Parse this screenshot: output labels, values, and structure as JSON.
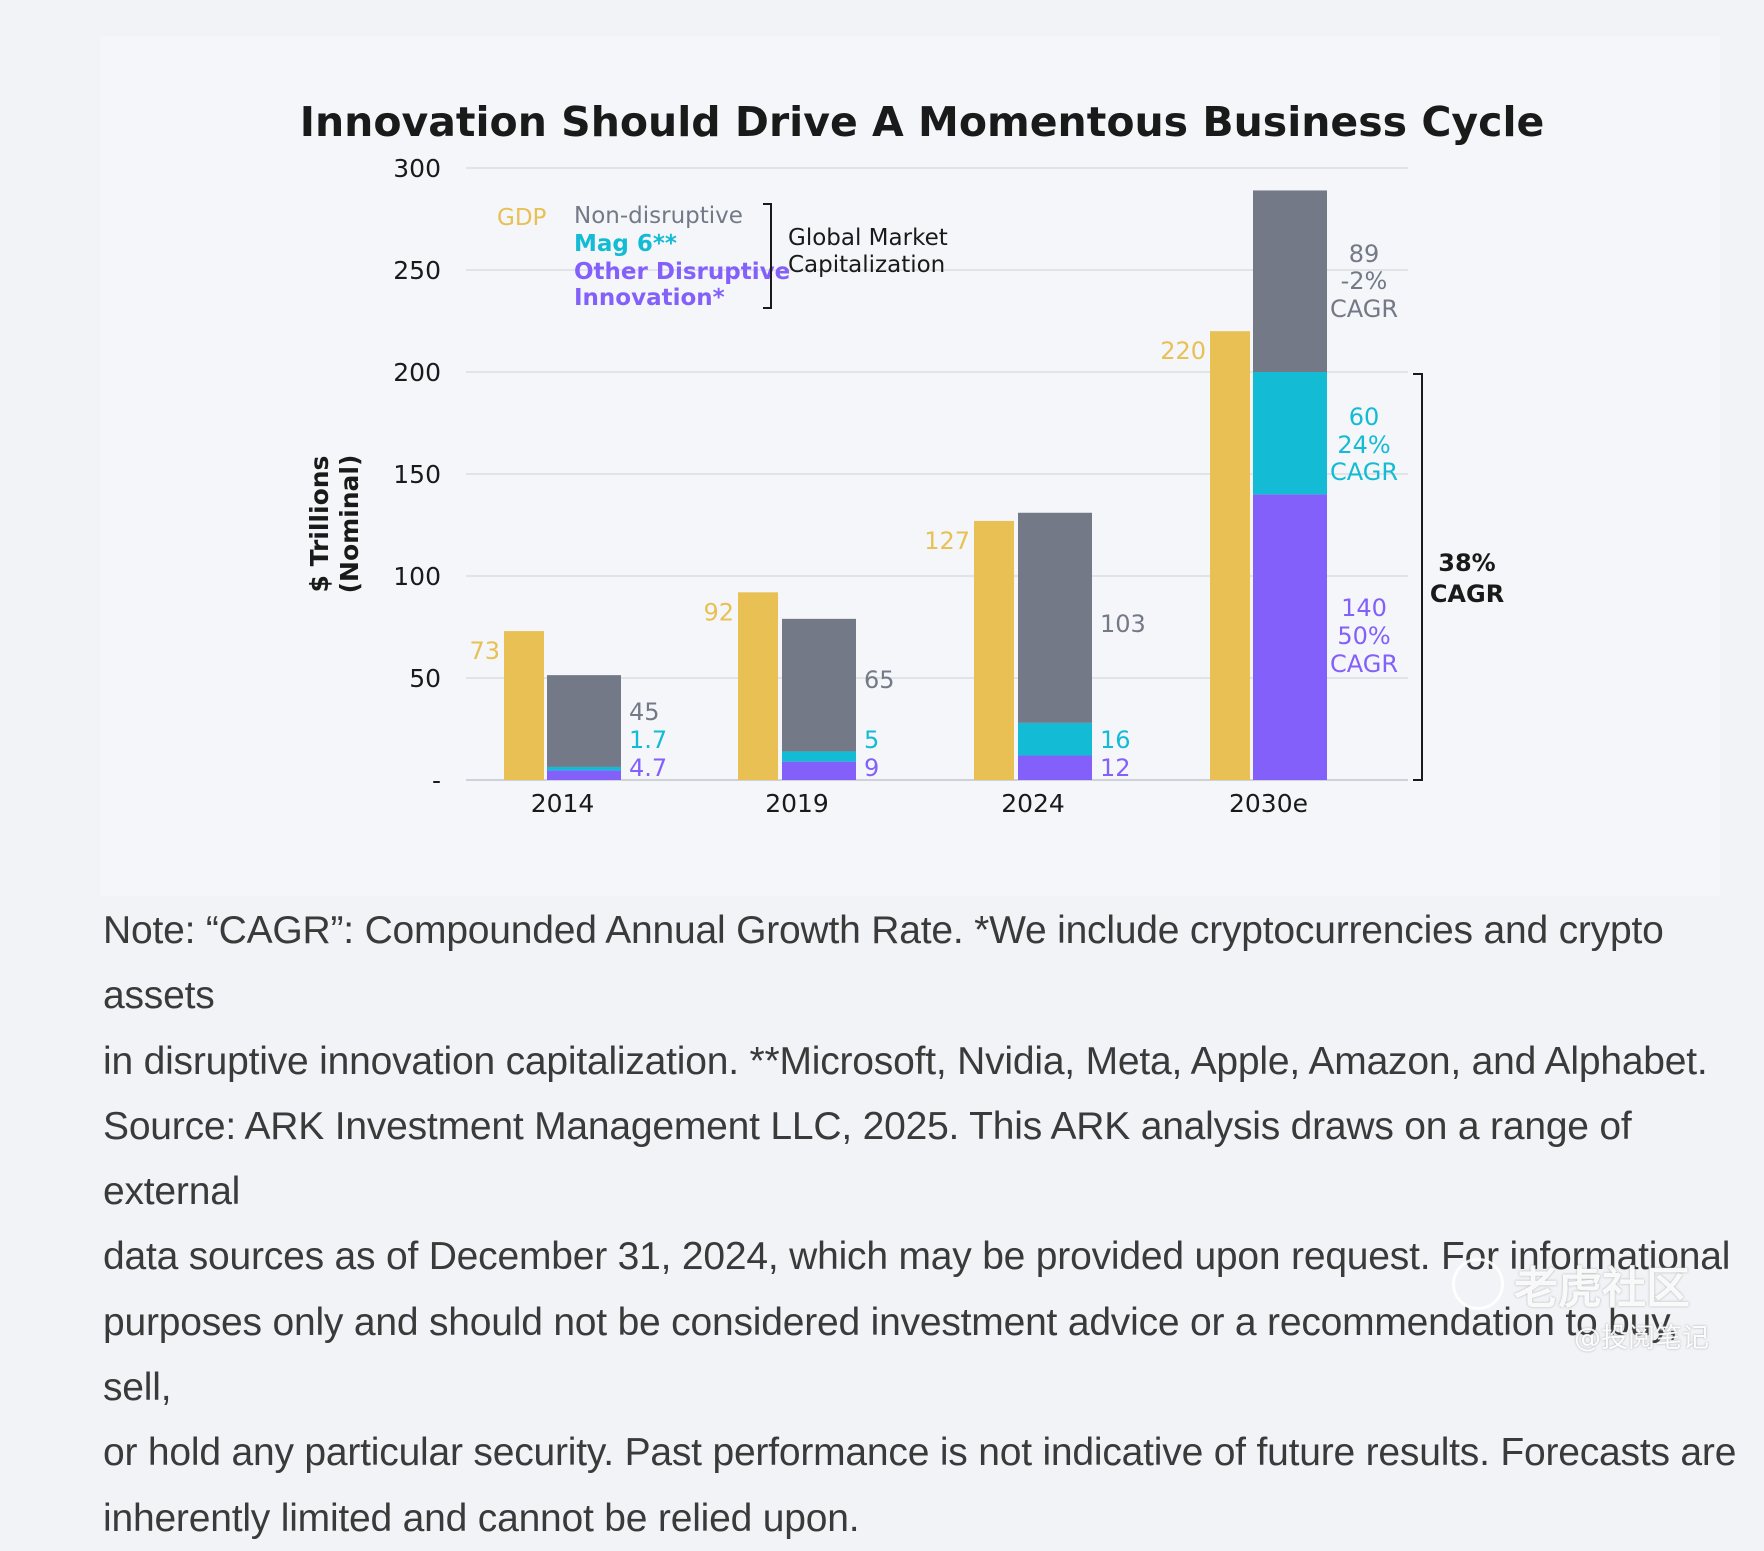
{
  "chart_data": {
    "type": "bar",
    "title": "Innovation Should Drive A Momentous Business Cycle",
    "ylabel_line1": "$ Trillions",
    "ylabel_line2": "(Nominal)",
    "ylim": [
      0,
      300
    ],
    "yticks": [
      "300",
      "250",
      "200",
      "150",
      "100",
      "50",
      "-"
    ],
    "ytick_values": [
      300,
      250,
      200,
      150,
      100,
      50,
      0
    ],
    "grid": true,
    "categories": [
      "2014",
      "2019",
      "2024",
      "2030e"
    ],
    "gdp": {
      "name": "GDP",
      "values": [
        73,
        92,
        127,
        220
      ],
      "labels": [
        "73",
        "92",
        "127",
        "220"
      ]
    },
    "market_cap_series": [
      {
        "name": "Other Disruptive Innovation*",
        "values": [
          4.7,
          9,
          12,
          140
        ]
      },
      {
        "name": "Mag 6**",
        "values": [
          1.7,
          5,
          16,
          60
        ]
      },
      {
        "name": "Non-disruptive",
        "values": [
          45,
          65,
          103,
          89
        ]
      }
    ],
    "value_labels": [
      {
        "non": "45",
        "mag": "1.7",
        "other": "4.7"
      },
      {
        "non": "65",
        "mag": "5",
        "other": "9"
      },
      {
        "non": "103",
        "mag": "16",
        "other": "12"
      },
      {
        "non_lines": [
          "89",
          "-2%",
          "CAGR"
        ],
        "mag_lines": [
          "60",
          "24%",
          "CAGR"
        ],
        "other_lines": [
          "140",
          "50%",
          "CAGR"
        ]
      }
    ],
    "legend": {
      "gdp": "GDP",
      "non": "Non-disruptive",
      "mag": "Mag 6**",
      "other_line1": "Other Disruptive",
      "other_line2": "Innovation*",
      "group_line1": "Global Market",
      "group_line2": "Capitalization",
      "placement": "top-left"
    },
    "bracket_label_line1": "38%",
    "bracket_label_line2": "CAGR"
  },
  "colors": {
    "gdp": "#e8c054",
    "non": "#737987",
    "mag": "#13bcd4",
    "other": "#8360fa",
    "text_dark": "#1a1a1a",
    "grid": "#e1e3e8"
  },
  "note_lines": [
    "Note: “CAGR”: Compounded Annual Growth Rate. *We include cryptocurrencies and crypto assets",
    "in disruptive innovation capitalization. **Microsoft, Nvidia, Meta, Apple, Amazon, and Alphabet.",
    "Source: ARK Investment Management LLC, 2025. This ARK analysis draws on a range of external",
    "data sources as of December 31, 2024, which may be provided upon request. For informational",
    "purposes only and should not be considered investment advice or a recommendation to buy, sell,",
    "or hold any particular security. Past performance is not indicative of future results. Forecasts are",
    "inherently limited and cannot be relied upon."
  ],
  "watermark": {
    "brand": "老虎社区",
    "handle": "@投阅笔记"
  }
}
